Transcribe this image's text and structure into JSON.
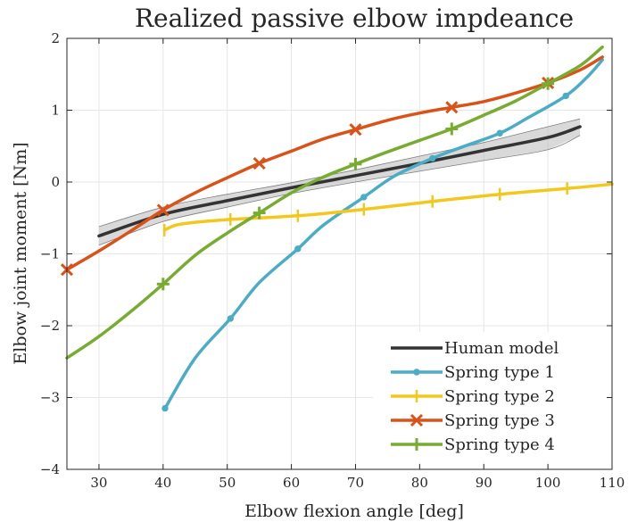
{
  "chart_data": {
    "type": "line",
    "title": "Realized passive elbow impdeance",
    "xlabel": "Elbow flexion angle [deg]",
    "ylabel": "Elbow joint moment [Nm]",
    "xlim": [
      25,
      110
    ],
    "ylim": [
      -4,
      2
    ],
    "xticks": [
      30,
      40,
      50,
      60,
      70,
      80,
      90,
      100,
      110
    ],
    "yticks": [
      -4,
      -3,
      -2,
      -1,
      0,
      1,
      2
    ],
    "xtick_labels": [
      "30",
      "40",
      "50",
      "60",
      "70",
      "80",
      "90",
      "100",
      "110"
    ],
    "ytick_labels": [
      "−4",
      "−3",
      "−2",
      "−1",
      "0",
      "1",
      "2"
    ],
    "grid": true,
    "legend_position": "bottom-right",
    "band": {
      "series": "Human model",
      "x": [
        30,
        40,
        50,
        60,
        70,
        80,
        90,
        100,
        105
      ],
      "upper": [
        -0.62,
        -0.35,
        -0.17,
        -0.01,
        0.17,
        0.36,
        0.55,
        0.77,
        0.88
      ],
      "lower": [
        -0.88,
        -0.55,
        -0.35,
        -0.16,
        0.0,
        0.15,
        0.3,
        0.45,
        0.65
      ]
    },
    "series": [
      {
        "name": "Human model",
        "color": "#333333",
        "marker": "none",
        "x": [
          30,
          40,
          50,
          60,
          70,
          80,
          90,
          100,
          105
        ],
        "y": [
          -0.75,
          -0.45,
          -0.26,
          -0.08,
          0.09,
          0.26,
          0.44,
          0.62,
          0.77
        ]
      },
      {
        "name": "Spring type 1",
        "color": "#4bacc6",
        "marker": "dot",
        "x": [
          40.3,
          45,
          50.5,
          55,
          61,
          65,
          71.3,
          76,
          82,
          87,
          92.5,
          97,
          102.8,
          106,
          108.5
        ],
        "y": [
          -3.15,
          -2.45,
          -1.9,
          -1.4,
          -0.93,
          -0.6,
          -0.21,
          0.08,
          0.33,
          0.5,
          0.68,
          0.9,
          1.2,
          1.45,
          1.7
        ],
        "marker_x": [
          40.3,
          50.5,
          61,
          71.3,
          82,
          92.5,
          102.8
        ]
      },
      {
        "name": "Spring type 2",
        "color": "#f2c81c",
        "marker": "vertical-tick",
        "x": [
          40.2,
          42,
          45,
          50.5,
          61,
          71.3,
          82,
          92.5,
          103,
          110
        ],
        "y": [
          -0.67,
          -0.6,
          -0.56,
          -0.52,
          -0.47,
          -0.38,
          -0.27,
          -0.17,
          -0.09,
          -0.03
        ],
        "marker_x": [
          40.2,
          50.5,
          61,
          71.3,
          82,
          92.5,
          103
        ]
      },
      {
        "name": "Spring type 3",
        "color": "#d95319",
        "marker": "x",
        "x": [
          25,
          30,
          35,
          40,
          45,
          50,
          55,
          60,
          65,
          70,
          75,
          80,
          85,
          90,
          95,
          100,
          105,
          108.5
        ],
        "y": [
          -1.22,
          -0.96,
          -0.68,
          -0.39,
          -0.15,
          0.06,
          0.26,
          0.43,
          0.6,
          0.73,
          0.86,
          0.96,
          1.04,
          1.12,
          1.24,
          1.38,
          1.56,
          1.74
        ],
        "marker_x": [
          25,
          40,
          55,
          70,
          85,
          100
        ]
      },
      {
        "name": "Spring type 4",
        "color": "#77ac30",
        "marker": "plus",
        "x": [
          25,
          30,
          35,
          40,
          45,
          50,
          55,
          60,
          65,
          70,
          75,
          80,
          85,
          90,
          95,
          100,
          105,
          108.5
        ],
        "y": [
          -2.45,
          -2.15,
          -1.8,
          -1.42,
          -1.02,
          -0.71,
          -0.43,
          -0.15,
          0.07,
          0.25,
          0.42,
          0.58,
          0.74,
          0.93,
          1.13,
          1.37,
          1.62,
          1.88
        ],
        "marker_x": [
          40,
          55,
          70,
          85,
          100
        ]
      }
    ]
  }
}
